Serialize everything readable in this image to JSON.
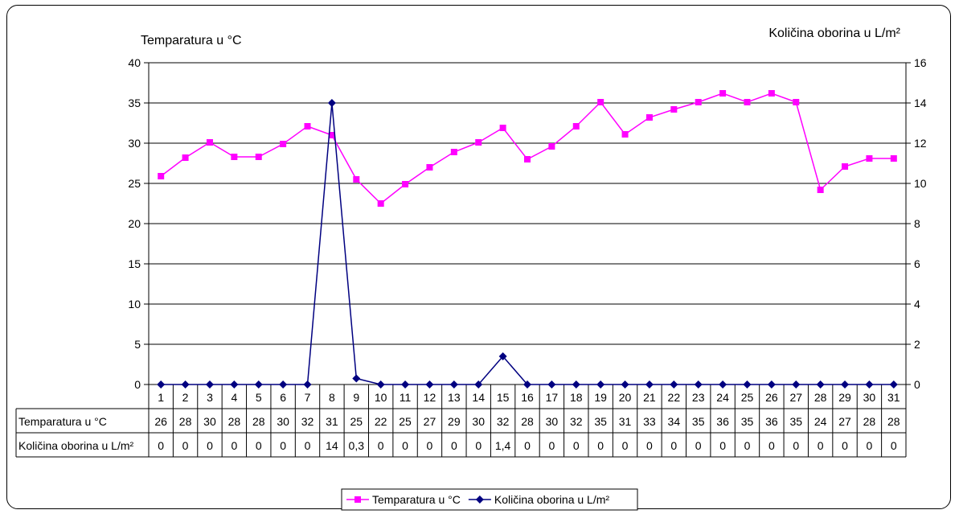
{
  "chart_data": {
    "type": "line",
    "y_left_label": "Temparatura u °C",
    "y_right_label": "Količina oborina u L/m²",
    "ylim_left": [
      0,
      40
    ],
    "ylim_right": [
      0,
      16
    ],
    "y_left_ticks": [
      0,
      5,
      10,
      15,
      20,
      25,
      30,
      35,
      40
    ],
    "y_right_ticks": [
      0,
      2,
      4,
      6,
      8,
      10,
      12,
      14,
      16
    ],
    "grid": true,
    "legend_position": "bottom-center",
    "categories": [
      "1",
      "2",
      "3",
      "4",
      "5",
      "6",
      "7",
      "8",
      "9",
      "10",
      "11",
      "12",
      "13",
      "14",
      "15",
      "16",
      "17",
      "18",
      "19",
      "20",
      "21",
      "22",
      "23",
      "24",
      "25",
      "26",
      "27",
      "28",
      "29",
      "30",
      "31"
    ],
    "series": [
      {
        "name": "Temparatura u °C",
        "axis": "left",
        "color": "#FF00FF",
        "marker": "square",
        "values": [
          25.9,
          28.2,
          30.1,
          28.3,
          28.3,
          29.9,
          32.1,
          31.0,
          25.5,
          22.5,
          24.9,
          27.0,
          28.9,
          30.1,
          31.9,
          28.0,
          29.6,
          32.1,
          35.1,
          31.1,
          33.2,
          34.2,
          35.1,
          36.2,
          35.1,
          36.2,
          35.1,
          24.2,
          27.1,
          28.1,
          28.1
        ],
        "table_values": [
          "26",
          "28",
          "30",
          "28",
          "28",
          "30",
          "32",
          "31",
          "25",
          "22",
          "25",
          "27",
          "29",
          "30",
          "32",
          "28",
          "30",
          "32",
          "35",
          "31",
          "33",
          "34",
          "35",
          "36",
          "35",
          "36",
          "35",
          "24",
          "27",
          "28",
          "28"
        ]
      },
      {
        "name": "Količina oborina u L/m²",
        "axis": "right",
        "color": "#000080",
        "marker": "diamond",
        "values": [
          0,
          0,
          0,
          0,
          0,
          0,
          0,
          14,
          0.3,
          0,
          0,
          0,
          0,
          0,
          1.4,
          0,
          0,
          0,
          0,
          0,
          0,
          0,
          0,
          0,
          0,
          0,
          0,
          0,
          0,
          0,
          0
        ],
        "table_values": [
          "0",
          "0",
          "0",
          "0",
          "0",
          "0",
          "0",
          "14",
          "0,3",
          "0",
          "0",
          "0",
          "0",
          "0",
          "1,4",
          "0",
          "0",
          "0",
          "0",
          "0",
          "0",
          "0",
          "0",
          "0",
          "0",
          "0",
          "0",
          "0",
          "0",
          "0",
          "0"
        ]
      }
    ]
  }
}
